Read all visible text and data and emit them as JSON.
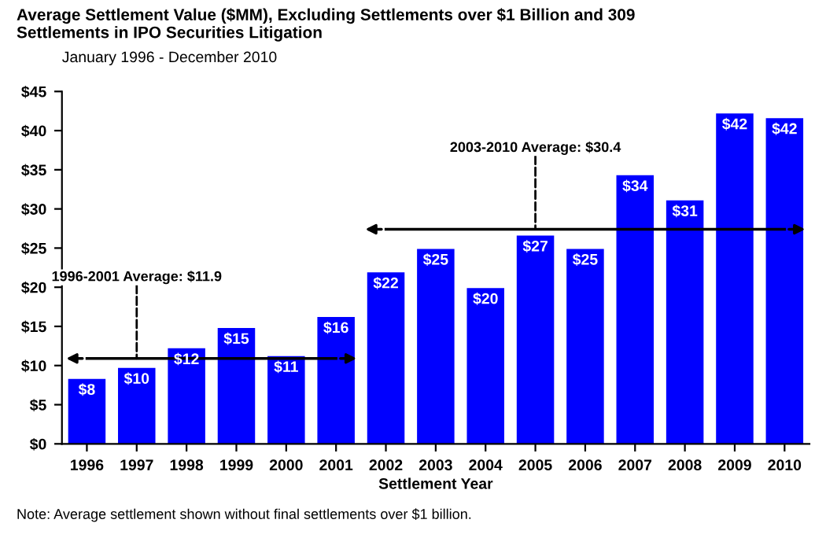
{
  "chart_data": {
    "type": "bar",
    "title": "Average Settlement Value ($MM), Excluding Settlements over $1 Billion and 309\nSettlements in IPO Securities Litigation",
    "subtitle": "January 1996 - December 2010",
    "xlabel": "Settlement Year",
    "categories": [
      "1996",
      "1997",
      "1998",
      "1999",
      "2000",
      "2001",
      "2002",
      "2003",
      "2004",
      "2005",
      "2006",
      "2007",
      "2008",
      "2009",
      "2010"
    ],
    "series": [
      {
        "color": "#0000ff",
        "values": [
          8.3,
          9.7,
          12.2,
          14.8,
          11.2,
          16.2,
          21.9,
          24.9,
          19.9,
          26.6,
          24.9,
          34.3,
          31.1,
          42.2,
          41.6
        ],
        "value_labels": [
          "$8",
          "$10",
          "$12",
          "$15",
          "$11",
          "$16",
          "$22",
          "$25",
          "$20",
          "$27",
          "$25",
          "$34",
          "$31",
          "$42",
          "$42"
        ]
      },
      {
        "type": "line",
        "color": "#000000",
        "values": [
          10.9,
          10.9,
          10.9,
          10.9,
          10.9,
          10.9,
          null,
          null,
          null,
          null,
          null,
          null,
          null,
          null,
          null
        ]
      },
      {
        "type": "line",
        "color": "#000000",
        "values": [
          null,
          null,
          null,
          null,
          null,
          null,
          27.4,
          27.4,
          27.4,
          27.4,
          27.4,
          27.4,
          27.4,
          27.4,
          27.4
        ]
      }
    ],
    "ylim": [
      0,
      45
    ],
    "yticks": [
      {
        "value": 0,
        "label": "$0"
      },
      {
        "value": 5,
        "label": "$5"
      },
      {
        "value": 10,
        "label": "$10"
      },
      {
        "value": 15,
        "label": "$15"
      },
      {
        "value": 20,
        "label": "$20"
      },
      {
        "value": 25,
        "label": "$25"
      },
      {
        "value": 30,
        "label": "$30"
      },
      {
        "value": 35,
        "label": "$35"
      },
      {
        "value": 40,
        "label": "$40"
      },
      {
        "value": 45,
        "label": "$45"
      }
    ],
    "annotations": [
      {
        "text": "1996-2001 Average: $11.9",
        "x": "1997",
        "y": 10.9
      },
      {
        "text": "2003-2010 Average: $30.4",
        "x": "2005",
        "y": 27.4
      },
      "Note: Average settlement shown without final settlements over $1 billion."
    ]
  }
}
